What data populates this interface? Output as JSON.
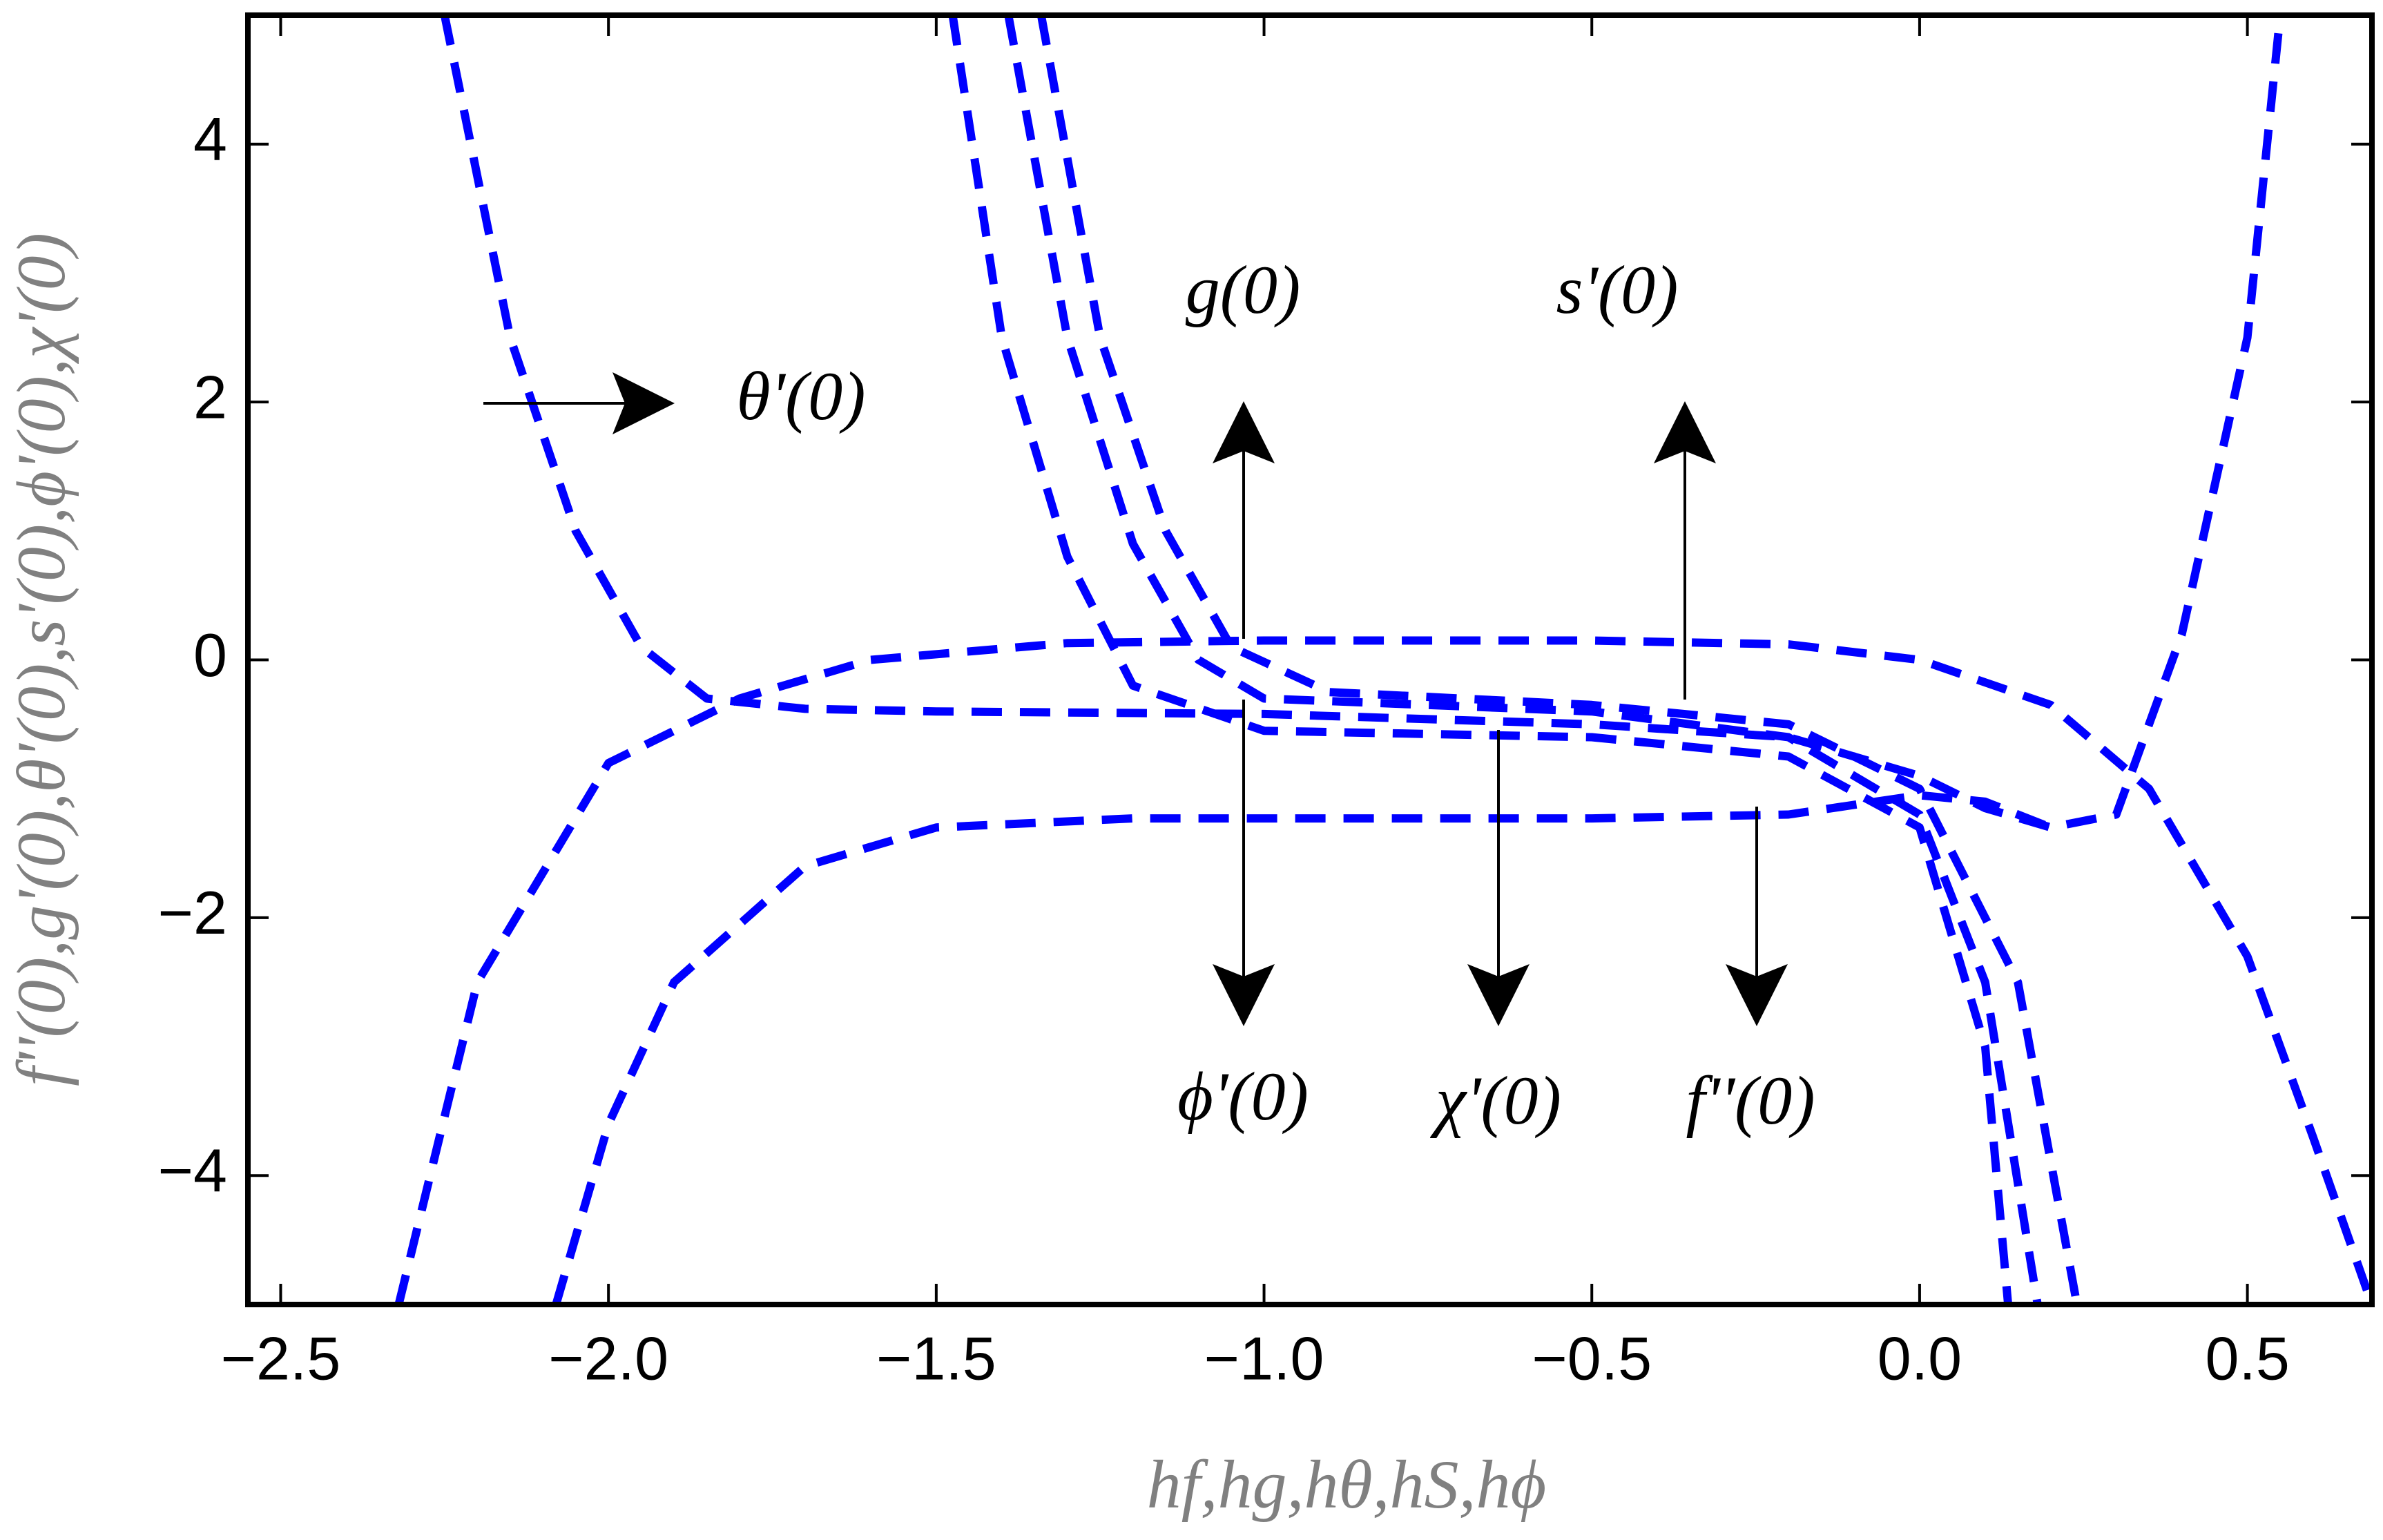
{
  "chart_data": {
    "type": "line",
    "xlabel": "hf,hg,hθ,hS,hϕ",
    "ylabel": "f''(0),g'(0),θ'(0),s'(0),ϕ'(0),χ'(0)",
    "xlim": [
      -2.55,
      0.69
    ],
    "ylim": [
      -5,
      5
    ],
    "xticks": [
      {
        "value": -2.5,
        "label": "−2.5"
      },
      {
        "value": -2,
        "label": "−2.0"
      },
      {
        "value": -1.5,
        "label": "−1.5"
      },
      {
        "value": -1,
        "label": "−1.0"
      },
      {
        "value": -0.5,
        "label": "−0.5"
      },
      {
        "value": 0,
        "label": "0.0"
      },
      {
        "value": 0.5,
        "label": "0.5"
      }
    ],
    "yticks": [
      {
        "value": -4,
        "label": "−4"
      },
      {
        "value": -2,
        "label": "−2"
      },
      0,
      2,
      4
    ],
    "annotations": [
      "θ'(0)",
      "g(0)",
      "s'(0)",
      "ϕ'(0)",
      "χ'(0)",
      "f''(0)"
    ],
    "series": [
      {
        "color": "#0000ff",
        "x": [
          -2.25,
          -2.15,
          -2.05,
          -1.95,
          -1.85,
          -1.7,
          -1.5,
          -1.0,
          -0.5,
          -0.2,
          0,
          0.1,
          0.2,
          0.3,
          0.4,
          0.5,
          0.55
        ],
        "values": [
          5,
          2.5,
          1,
          0.1,
          -0.3,
          -0.38,
          -0.4,
          -0.42,
          -0.5,
          -0.6,
          -0.9,
          -1.15,
          -1.3,
          -1.2,
          0.2,
          2.5,
          5
        ]
      },
      {
        "color": "#0000ff",
        "x": [
          -2.32,
          -2.2,
          -2.0,
          -1.8,
          -1.6,
          -1.3,
          -1.0,
          -0.5,
          -0.2,
          0,
          0.2,
          0.35,
          0.5,
          0.6,
          0.69
        ],
        "values": [
          -5,
          -2.5,
          -0.8,
          -0.3,
          0,
          0.13,
          0.15,
          0.15,
          0.12,
          0,
          -0.35,
          -1.0,
          -2.3,
          -3.7,
          -5
        ]
      },
      {
        "color": "#0000ff",
        "x": [
          -2.08,
          -2.0,
          -1.9,
          -1.7,
          -1.5,
          -1.2,
          -0.5,
          -0.2,
          0,
          0.1,
          0.2
        ],
        "values": [
          -5,
          -3.6,
          -2.5,
          -1.6,
          -1.3,
          -1.23,
          -1.23,
          -1.2,
          -1.05,
          -1.1,
          -1.3
        ]
      },
      {
        "color": "#0000ff",
        "x": [
          -1.475,
          -1.4,
          -1.3,
          -1.2,
          -1.0,
          -0.5,
          -0.2,
          0,
          0.1,
          0.135
        ],
        "values": [
          5,
          2.5,
          0.8,
          -0.2,
          -0.55,
          -0.6,
          -0.75,
          -1.3,
          -3,
          -5
        ]
      },
      {
        "color": "#0000ff",
        "x": [
          -1.39,
          -1.3,
          -1.2,
          -1.1,
          -1.0,
          -0.5,
          -0.2,
          0,
          0.1,
          0.18
        ],
        "values": [
          5,
          2.5,
          0.9,
          0,
          -0.3,
          -0.4,
          -0.6,
          -1.2,
          -2.5,
          -5
        ]
      },
      {
        "color": "#0000ff",
        "x": [
          -1.34,
          -1.25,
          -1.15,
          -1.05,
          -0.9,
          -0.5,
          -0.2,
          0,
          0.15,
          0.24
        ],
        "values": [
          5,
          2.5,
          1,
          0.1,
          -0.25,
          -0.35,
          -0.5,
          -1.0,
          -2.5,
          -5
        ]
      }
    ]
  }
}
